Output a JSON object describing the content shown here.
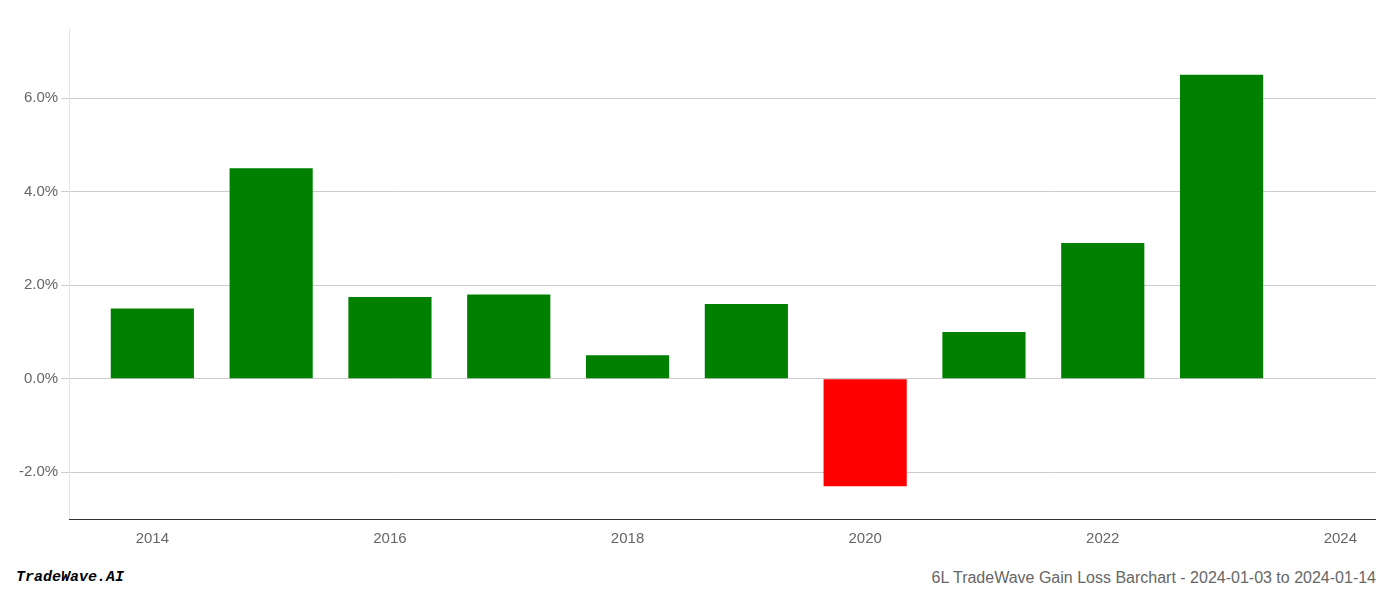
{
  "chart_data": {
    "type": "bar",
    "title": "6L TradeWave Gain Loss Barchart - 2024-01-03 to 2024-01-14",
    "annotations": [
      "TradeWave.AI"
    ],
    "x": [
      2014,
      2015,
      2016,
      2017,
      2018,
      2019,
      2020,
      2021,
      2022,
      2023
    ],
    "values": [
      0.015,
      0.045,
      0.0175,
      0.018,
      0.005,
      0.016,
      -0.023,
      0.01,
      0.029,
      0.065
    ],
    "colors": [
      "#008000",
      "#008000",
      "#008000",
      "#008000",
      "#008000",
      "#008000",
      "#ff0000",
      "#008000",
      "#008000",
      "#008000"
    ],
    "xlim": [
      2013.3,
      2024.3
    ],
    "xticks": [
      2014,
      2016,
      2018,
      2020,
      2022,
      2024
    ],
    "ylim": [
      -0.03,
      0.075
    ],
    "yticks": [
      {
        "value": -0.02,
        "label": "-2.0%"
      },
      {
        "value": 0.0,
        "label": "0.0%"
      },
      {
        "value": 0.02,
        "label": "2.0%"
      },
      {
        "value": 0.04,
        "label": "4.0%"
      },
      {
        "value": 0.06,
        "label": "6.0%"
      }
    ],
    "grid": "y"
  }
}
